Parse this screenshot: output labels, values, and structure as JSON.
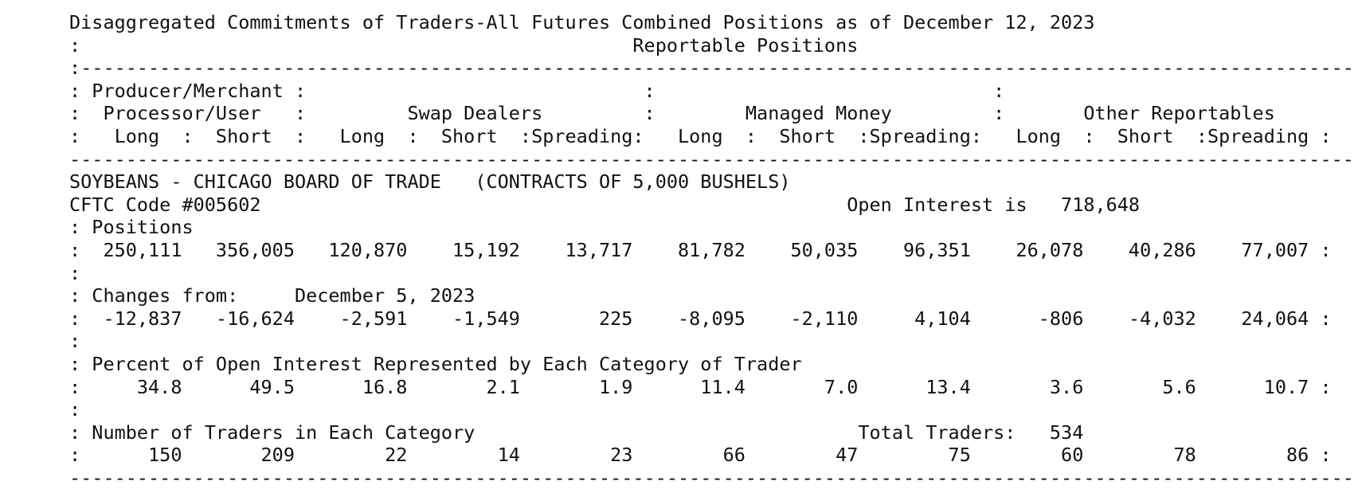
{
  "report": {
    "lines": [
      "Disaggregated Commitments of Traders-All Futures Combined Positions as of December 12, 2023",
      ":                                                 Reportable Positions                                                :",
      ":-------------------------------------------------------------------------------------------------------------------- :",
      ": Producer/Merchant :                              :                              :                                    :",
      ":  Processor/User   :         Swap Dealers         :        Managed Money         :       Other Reportables            :",
      ":   Long  :  Short  :   Long  :  Short  :Spreading:   Long  :  Short  :Spreading:   Long  :  Short  :Spreading :",
      "----------------------------------------------------------------------------------------------------------------------",
      "SOYBEANS - CHICAGO BOARD OF TRADE   (CONTRACTS OF 5,000 BUSHELS)                                                     :",
      "CFTC Code #005602                                                    Open Interest is   718,648                       :",
      ": Positions                                                                                                           :",
      ":  250,111   356,005   120,870    15,192    13,717    81,782    50,035    96,351    26,078    40,286    77,007 :",
      ":                                                                                                                     :",
      ": Changes from:     December 5, 2023                                                                                  :",
      ":  -12,837   -16,624    -2,591    -1,549       225    -8,095    -2,110     4,104      -806    -4,032    24,064 :",
      ":                                                                                                                     :",
      ": Percent of Open Interest Represented by Each Category of Trader                                                     :",
      ":     34.8      49.5      16.8       2.1       1.9      11.4       7.0      13.4       3.6       5.6      10.7 :",
      ":                                                                                                                     :",
      ": Number of Traders in Each Category                                  Total Traders:   534                            :",
      ":      150       209        22        14        23        66        47        75        60        78        86 :",
      "----------------------------------------------------------------------------------------------------------------------"
    ]
  }
}
